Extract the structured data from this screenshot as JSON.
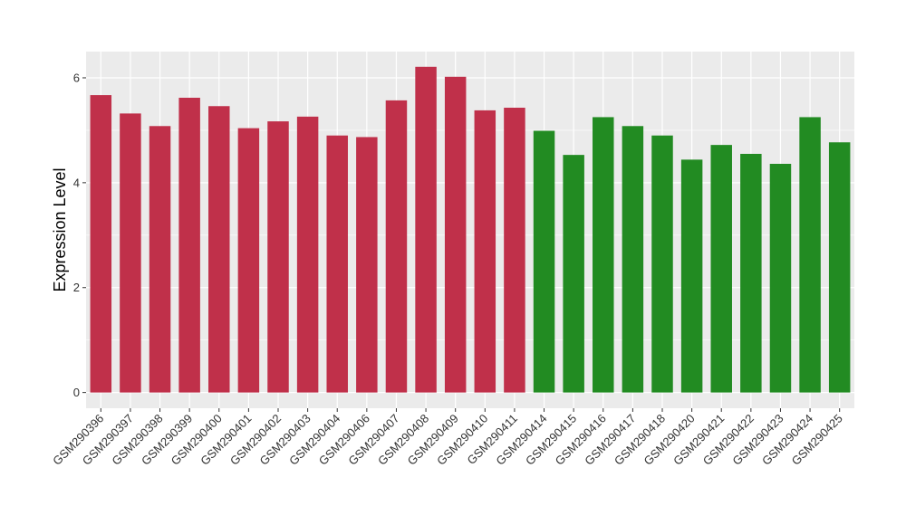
{
  "chart_data": {
    "type": "bar",
    "title": "",
    "xlabel": "",
    "ylabel": "Expression Level",
    "ylim": [
      -0.3,
      6.5
    ],
    "yticks": [
      0,
      2,
      4,
      6
    ],
    "grid": true,
    "legend": "none",
    "categories": [
      "GSM290396",
      "GSM290397",
      "GSM290398",
      "GSM290399",
      "GSM290400",
      "GSM290401",
      "GSM290402",
      "GSM290403",
      "GSM290404",
      "GSM290406",
      "GSM290407",
      "GSM290408",
      "GSM290409",
      "GSM290410",
      "GSM290411",
      "GSM290414",
      "GSM290415",
      "GSM290416",
      "GSM290417",
      "GSM290418",
      "GSM290420",
      "GSM290421",
      "GSM290422",
      "GSM290423",
      "GSM290424",
      "GSM290425"
    ],
    "values": [
      5.67,
      5.32,
      5.08,
      5.62,
      5.46,
      5.04,
      5.17,
      5.26,
      4.9,
      4.87,
      5.57,
      6.21,
      6.02,
      5.38,
      5.43,
      4.99,
      4.53,
      5.25,
      5.08,
      4.9,
      4.44,
      4.72,
      4.55,
      4.36,
      5.25,
      4.77
    ],
    "groups": [
      "red",
      "red",
      "red",
      "red",
      "red",
      "red",
      "red",
      "red",
      "red",
      "red",
      "red",
      "red",
      "red",
      "red",
      "red",
      "green",
      "green",
      "green",
      "green",
      "green",
      "green",
      "green",
      "green",
      "green",
      "green",
      "green"
    ],
    "colors": {
      "red": "#C0304A",
      "green": "#228B22",
      "panel": "#EBEBEB",
      "grid": "#FFFFFF",
      "text": "#333333"
    }
  }
}
